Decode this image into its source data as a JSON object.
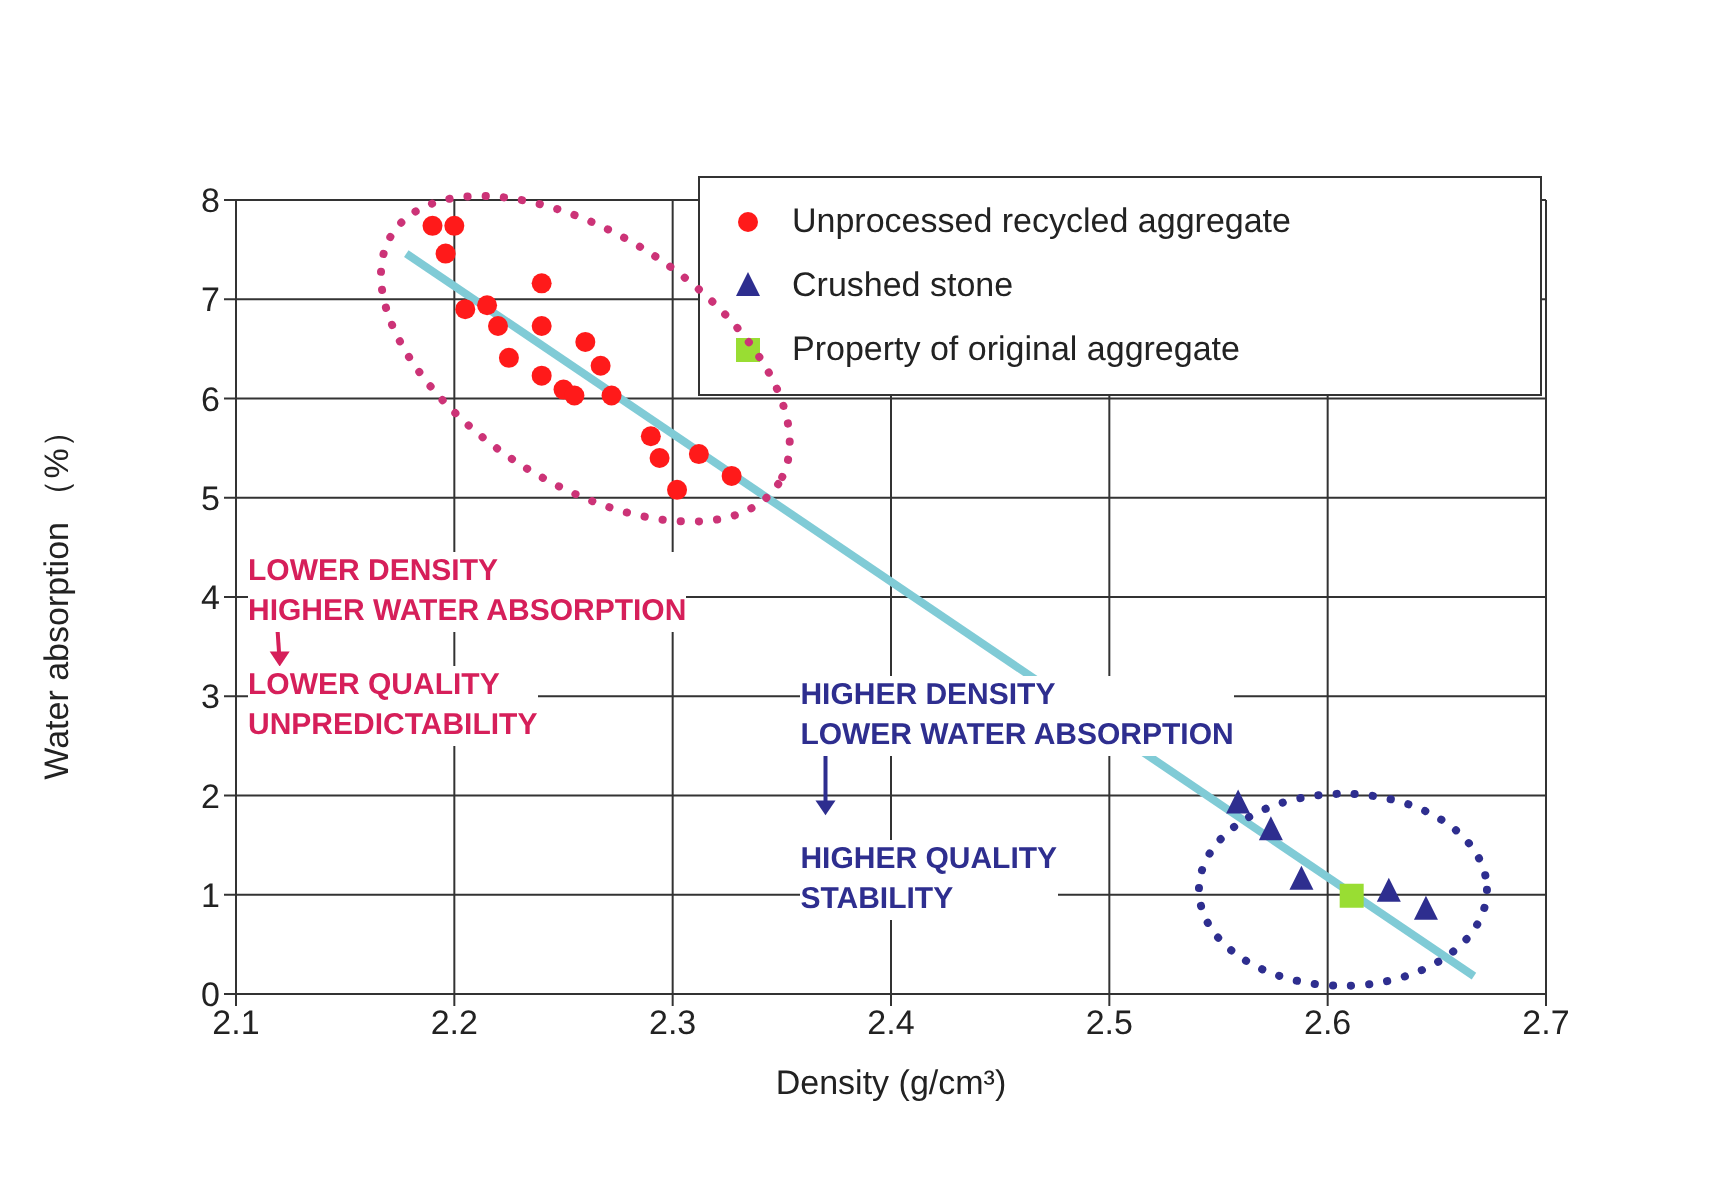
{
  "chart_data": {
    "type": "scatter",
    "xlabel": "Density (g/cm³)",
    "ylabel": "Water absorption （%）",
    "xlim": [
      2.1,
      2.7
    ],
    "xticks": [
      2.1,
      2.2,
      2.3,
      2.4,
      2.5,
      2.6,
      2.7
    ],
    "ylim": [
      0,
      8
    ],
    "yticks": [
      0,
      1,
      2,
      3,
      4,
      5,
      6,
      7,
      8
    ],
    "grid": true,
    "legend": "top right",
    "series": [
      {
        "name": "Unprocessed recycled aggregate",
        "color": "#ff1a1a",
        "marker": "circle",
        "x": [
          2.19,
          2.2,
          2.196,
          2.24,
          2.205,
          2.215,
          2.22,
          2.24,
          2.225,
          2.24,
          2.26,
          2.267,
          2.25,
          2.255,
          2.272,
          2.29,
          2.294,
          2.312,
          2.327,
          2.302
        ],
        "values": [
          7.74,
          7.74,
          7.46,
          7.16,
          6.9,
          6.94,
          6.73,
          6.73,
          6.41,
          6.23,
          6.57,
          6.33,
          6.09,
          6.03,
          6.03,
          5.62,
          5.4,
          5.44,
          5.22,
          5.08
        ]
      },
      {
        "name": "Crushed stone",
        "color": "#2e2e8f",
        "marker": "triangle",
        "x": [
          2.559,
          2.574,
          2.588,
          2.628,
          2.645
        ],
        "values": [
          1.92,
          1.65,
          1.15,
          1.03,
          0.85
        ]
      },
      {
        "name": "Property of original aggregate",
        "color": "#99dd33",
        "marker": "square",
        "x": [
          2.611
        ],
        "values": [
          0.99
        ]
      },
      {
        "type": "line",
        "color": "#80cbd6",
        "marker": "none",
        "x": [
          2.178,
          2.667
        ],
        "values": [
          7.46,
          0.18
        ]
      }
    ],
    "annotations": [
      "LOWER DENSITY\nHIGHER WATER ABSORPTION",
      "LOWER QUALITY\nUNPREDICTABILITY",
      "HIGHER DENSITY\nLOWER WATER ABSORPTION",
      "HIGHER QUALITY\nSTABILITY"
    ]
  }
}
